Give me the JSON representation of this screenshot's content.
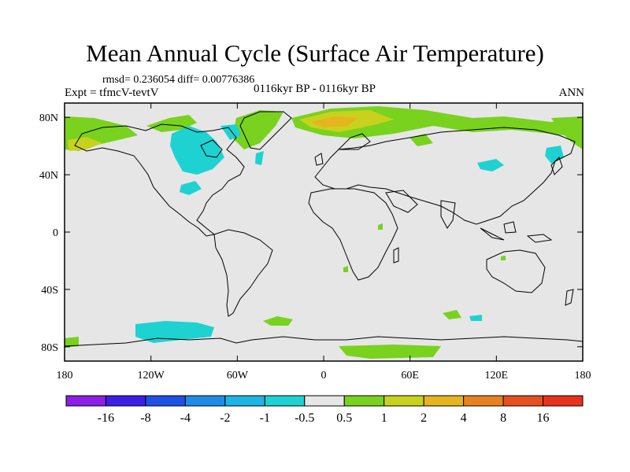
{
  "title": "Mean Annual Cycle (Surface Air Temperature)",
  "stats": "rmsd= 0.236054 diff= 0.00776386",
  "experiment": "Expt = tfmcV-tevtV",
  "period": "0116kyr BP - 0116kyr BP",
  "season": "ANN",
  "axes": {
    "lon_ticks": [
      "180",
      "120W",
      "60W",
      "0",
      "60E",
      "120E",
      "180"
    ],
    "lon_values": [
      -180,
      -120,
      -60,
      0,
      60,
      120,
      180
    ],
    "lat_ticks": [
      "80N",
      "40N",
      "0",
      "40S",
      "80S"
    ],
    "lat_values": [
      80,
      40,
      0,
      -40,
      -80
    ],
    "lon_range": [
      -180,
      180
    ],
    "lat_range": [
      -90,
      90
    ]
  },
  "colorbar": {
    "labels": [
      "-16",
      "-8",
      "-4",
      "-2",
      "-1",
      "-0.5",
      "0.5",
      "1",
      "2",
      "4",
      "8",
      "16"
    ],
    "colors": [
      "#8c1ee6",
      "#3c1ee6",
      "#1e50e6",
      "#1e8ce6",
      "#1eb4e6",
      "#1ed2d2",
      "#e6e6e6",
      "#78d21e",
      "#c8d21e",
      "#e6b41e",
      "#e6821e",
      "#e6501e",
      "#e6321e"
    ]
  },
  "colors": {
    "background_field": "#e6e6e6",
    "cyan": "#1ed2d2",
    "green": "#78d21e",
    "yellow": "#c8d21e",
    "orange": "#e6b41e"
  }
}
